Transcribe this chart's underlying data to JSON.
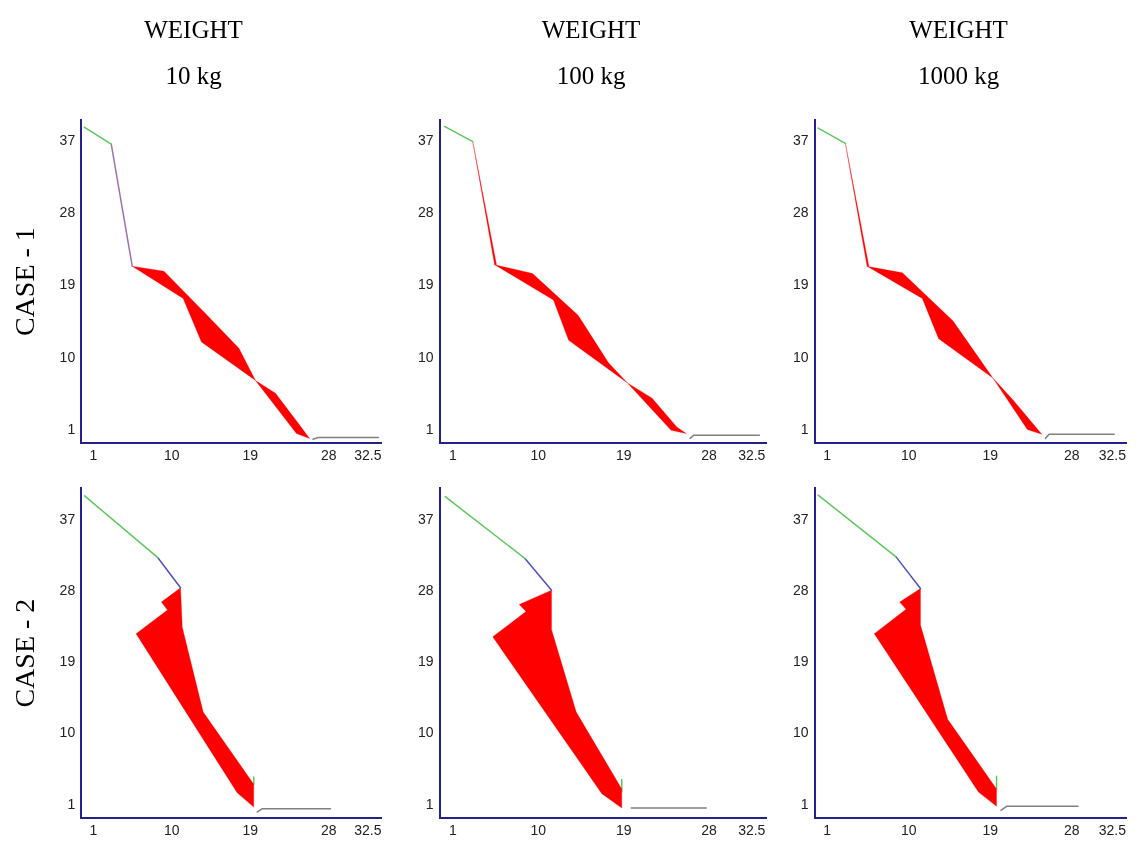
{
  "chart_data": [
    {
      "type": "line",
      "title": "WEIGHT",
      "subtitle": "10 kg",
      "ylabel": "CASE - 1",
      "xlim": [
        -0.4,
        34
      ],
      "ylim": [
        -0.6,
        39.6
      ],
      "xticks": [
        1,
        10,
        19,
        28,
        32.5
      ],
      "yticks": [
        1,
        10,
        19,
        28,
        37
      ],
      "grid": false,
      "legend": false,
      "marker": "none",
      "series": [
        {
          "type": "line",
          "color": "#5cc85c",
          "x": [
            -0.05,
            3.05
          ],
          "values": [
            38.7,
            36.6
          ]
        },
        {
          "type": "line",
          "color": "#a070b0",
          "x": [
            3.05,
            5.46
          ],
          "values": [
            36.6,
            21.4
          ]
        },
        {
          "type": "area",
          "color": "#ff0000",
          "x": [
            5.46,
            9.1,
            13.8,
            17.7,
            19.6,
            21.9,
            24.7,
            25.8,
            24.3,
            19.6,
            13.4,
            11.3,
            5.46
          ],
          "values": [
            21.4,
            20.8,
            15.6,
            11.2,
            7.2,
            5.6,
            1.6,
            0.0,
            0.6,
            7.2,
            12,
            17.4,
            21.4
          ]
        },
        {
          "type": "line",
          "color": "#808080",
          "x": [
            26.2,
            26.8,
            33.7
          ],
          "values": [
            -0.1,
            0.1,
            0.1
          ]
        }
      ]
    },
    {
      "type": "line",
      "title": "WEIGHT",
      "subtitle": "100 kg",
      "xlim": [
        -0.4,
        34
      ],
      "ylim": [
        -0.6,
        39.6
      ],
      "xticks": [
        1,
        10,
        19,
        28,
        32.5
      ],
      "yticks": [
        1,
        10,
        19,
        28,
        37
      ],
      "grid": false,
      "legend": false,
      "marker": "none",
      "series": [
        {
          "type": "line",
          "color": "#5cc85c",
          "x": [
            0.12,
            3.1
          ],
          "values": [
            38.8,
            36.9
          ]
        },
        {
          "type": "area",
          "color": "#ff0000",
          "x": [
            3.1,
            5.6,
            5.4,
            3.1
          ],
          "values": [
            36.9,
            21.6,
            21.6,
            36.9
          ]
        },
        {
          "type": "area",
          "color": "#ff0000",
          "x": [
            5.4,
            9.4,
            14.2,
            17.4,
            19.4,
            22.0,
            24.6,
            25.6,
            24.0,
            19.4,
            13.2,
            11.6,
            5.4
          ],
          "values": [
            21.6,
            20.5,
            15.3,
            9.4,
            6.9,
            5.0,
            1.4,
            0.6,
            1.0,
            6.9,
            12.2,
            17.2,
            21.6
          ]
        },
        {
          "type": "line",
          "color": "#808080",
          "x": [
            26.0,
            26.4,
            33.3
          ],
          "values": [
            0.0,
            0.4,
            0.4
          ]
        }
      ]
    },
    {
      "type": "line",
      "title": "WEIGHT",
      "subtitle": "1000 kg",
      "xlim": [
        -0.4,
        34
      ],
      "ylim": [
        -0.6,
        39.6
      ],
      "xticks": [
        1,
        10,
        19,
        28,
        32.5
      ],
      "yticks": [
        1,
        10,
        19,
        28,
        37
      ],
      "grid": false,
      "legend": false,
      "marker": "none",
      "series": [
        {
          "type": "line",
          "color": "#5cc85c",
          "x": [
            0,
            3
          ],
          "values": [
            38.6,
            36.7
          ]
        },
        {
          "type": "area",
          "color": "#ff0000",
          "x": [
            3,
            5.6,
            5.4,
            3
          ],
          "values": [
            36.7,
            21.4,
            21.4,
            36.7
          ]
        },
        {
          "type": "area",
          "color": "#ff0000",
          "x": [
            5.4,
            9.3,
            14.9,
            19.3,
            21.5,
            24.7,
            23.1,
            19.3,
            13.3,
            11.5,
            5.4
          ],
          "values": [
            21.4,
            20.6,
            14.6,
            7.5,
            4.8,
            0.5,
            1.1,
            7.5,
            12.4,
            17.4,
            21.4
          ]
        },
        {
          "type": "line",
          "color": "#808080",
          "x": [
            25.1,
            25.5,
            32.7
          ],
          "values": [
            0.0,
            0.5,
            0.5
          ]
        }
      ]
    },
    {
      "type": "line",
      "ylabel": "CASE - 2",
      "xlim": [
        -0.4,
        34
      ],
      "ylim": [
        -0.7,
        41
      ],
      "xticks": [
        1,
        10,
        19,
        28,
        32.5
      ],
      "yticks": [
        1,
        10,
        19,
        28,
        37
      ],
      "grid": false,
      "legend": false,
      "marker": "none",
      "series": [
        {
          "type": "line",
          "color": "#5cc85c",
          "x": [
            0,
            8.4
          ],
          "values": [
            40.0,
            32.2
          ]
        },
        {
          "type": "line",
          "color": "#5050c0",
          "x": [
            8.4,
            11.0
          ],
          "values": [
            32.2,
            28.4
          ]
        },
        {
          "type": "area",
          "color": "#ff0000",
          "x": [
            11.0,
            8.8,
            9.5,
            5.9,
            17.5,
            19.4,
            19.4,
            13.6,
            11.2,
            11.0
          ],
          "values": [
            28.4,
            26.6,
            25.6,
            22.6,
            2.5,
            0.7,
            3.6,
            12.7,
            23.4,
            28.4
          ]
        },
        {
          "type": "line",
          "color": "#5cc85c",
          "x": [
            19.4,
            19.4
          ],
          "values": [
            4.5,
            3.6
          ]
        },
        {
          "type": "line",
          "color": "#808080",
          "x": [
            19.8,
            20.4,
            28.2
          ],
          "values": [
            0.1,
            0.5,
            0.5
          ]
        }
      ]
    },
    {
      "type": "line",
      "xlim": [
        -0.4,
        34
      ],
      "ylim": [
        -0.7,
        41
      ],
      "xticks": [
        1,
        10,
        19,
        28,
        32.5
      ],
      "yticks": [
        1,
        10,
        19,
        28,
        37
      ],
      "grid": false,
      "legend": false,
      "marker": "none",
      "series": [
        {
          "type": "line",
          "color": "#5cc85c",
          "x": [
            0.2,
            8.6
          ],
          "values": [
            39.9,
            32.1
          ]
        },
        {
          "type": "line",
          "color": "#5050c0",
          "x": [
            8.6,
            11.4
          ],
          "values": [
            32.1,
            28.1
          ]
        },
        {
          "type": "area",
          "color": "#ff0000",
          "x": [
            11.4,
            8.0,
            8.7,
            5.2,
            16.7,
            18.8,
            18.8,
            14.0,
            11.4,
            11.4
          ],
          "values": [
            28.1,
            26.3,
            25.4,
            22.2,
            2.4,
            0.6,
            3.0,
            12.7,
            23.1,
            28.1
          ]
        },
        {
          "type": "line",
          "color": "#5cc85c",
          "x": [
            18.8,
            18.8
          ],
          "values": [
            4.2,
            2.6
          ]
        },
        {
          "type": "line",
          "color": "#808080",
          "x": [
            19.8,
            27.7
          ],
          "values": [
            0.6,
            0.6
          ]
        }
      ]
    },
    {
      "type": "line",
      "xlim": [
        -0.4,
        34
      ],
      "ylim": [
        -0.7,
        41
      ],
      "xticks": [
        1,
        10,
        19,
        28,
        32.5
      ],
      "yticks": [
        1,
        10,
        19,
        28,
        37
      ],
      "grid": false,
      "legend": false,
      "marker": "none",
      "series": [
        {
          "type": "line",
          "color": "#5cc85c",
          "x": [
            0,
            8.6
          ],
          "values": [
            40.1,
            32.3
          ]
        },
        {
          "type": "line",
          "color": "#5050c0",
          "x": [
            8.6,
            11.3
          ],
          "values": [
            32.3,
            28.3
          ]
        },
        {
          "type": "area",
          "color": "#ff0000",
          "x": [
            11.3,
            9.0,
            9.7,
            6.2,
            17.7,
            19.7,
            19.7,
            14.3,
            11.3,
            11.3
          ],
          "values": [
            28.3,
            26.6,
            25.7,
            22.6,
            2.6,
            0.8,
            3.0,
            11.8,
            23.7,
            28.3
          ]
        },
        {
          "type": "line",
          "color": "#5cc85c",
          "x": [
            19.7,
            19.7
          ],
          "values": [
            4.6,
            3.0
          ]
        },
        {
          "type": "line",
          "color": "#808080",
          "x": [
            20.2,
            20.8,
            28.7
          ],
          "values": [
            0.3,
            0.8,
            0.8
          ]
        }
      ]
    }
  ]
}
